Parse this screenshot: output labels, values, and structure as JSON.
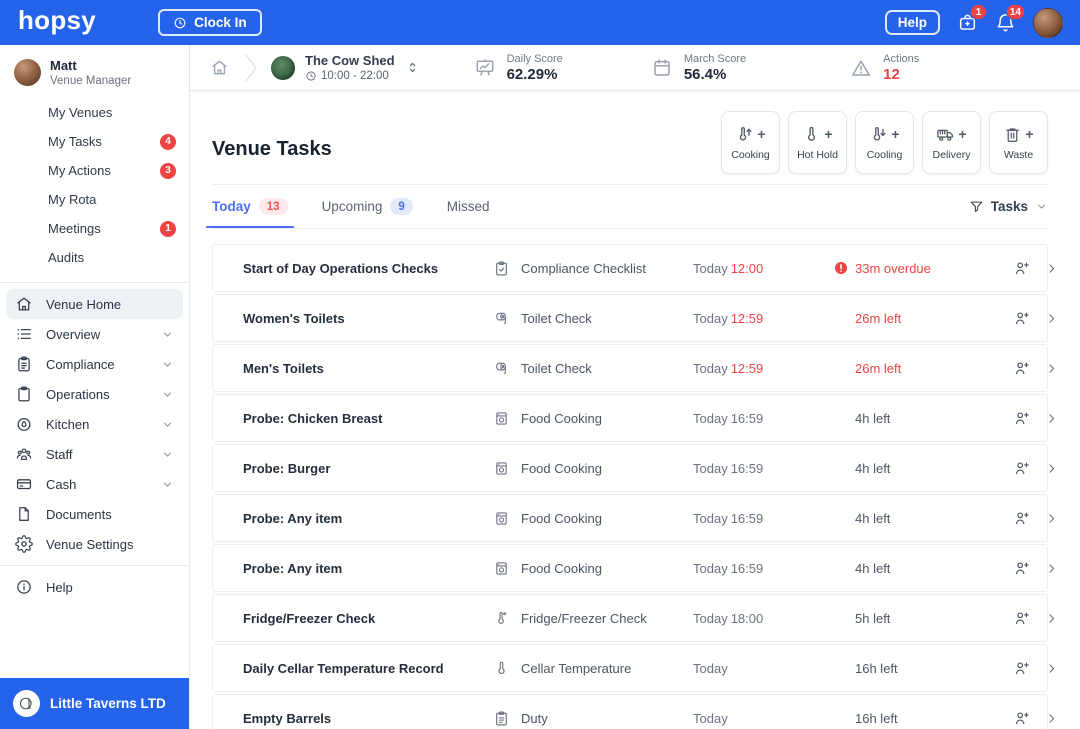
{
  "colors": {
    "brand_blue": "#2563eb",
    "accent_blue": "#4c6ef5",
    "alert_red": "#ef4444"
  },
  "topbar": {
    "logo": "hopsy",
    "clock_in_label": "Clock In",
    "help_label": "Help",
    "inbox_badge": "1",
    "notifications_badge": "14"
  },
  "header": {
    "venue_name": "The Cow Shed",
    "venue_hours": "10:00 - 22:00",
    "daily_score_label": "Daily Score",
    "daily_score_value": "62.29%",
    "month_score_label": "March Score",
    "month_score_value": "56.4%",
    "actions_label": "Actions",
    "actions_value": "12"
  },
  "sidebar": {
    "user": {
      "name": "Matt",
      "role": "Venue Manager"
    },
    "personal": [
      {
        "label": "My Venues"
      },
      {
        "label": "My Tasks",
        "badge": "4"
      },
      {
        "label": "My Actions",
        "badge": "3"
      },
      {
        "label": "My Rota"
      },
      {
        "label": "Meetings",
        "badge": "1"
      },
      {
        "label": "Audits"
      }
    ],
    "venue": [
      {
        "label": "Venue Home",
        "icon": "home",
        "active": true
      },
      {
        "label": "Overview",
        "icon": "list",
        "chevron": true
      },
      {
        "label": "Compliance",
        "icon": "clipboard-lines",
        "chevron": true
      },
      {
        "label": "Operations",
        "icon": "clipboard",
        "chevron": true
      },
      {
        "label": "Kitchen",
        "icon": "kitchen",
        "chevron": true
      },
      {
        "label": "Staff",
        "icon": "staff",
        "chevron": true
      },
      {
        "label": "Cash",
        "icon": "cash",
        "chevron": true
      },
      {
        "label": "Documents",
        "icon": "document"
      },
      {
        "label": "Venue Settings",
        "icon": "gear"
      }
    ],
    "help_label": "Help",
    "org_name": "Little Taverns LTD"
  },
  "main": {
    "title": "Venue Tasks",
    "quick_actions": [
      {
        "label": "Cooking",
        "icon": "thermo-up"
      },
      {
        "label": "Hot Hold",
        "icon": "thermo"
      },
      {
        "label": "Cooling",
        "icon": "thermo-down"
      },
      {
        "label": "Delivery",
        "icon": "truck"
      },
      {
        "label": "Waste",
        "icon": "trash"
      }
    ],
    "tabs": [
      {
        "label": "Today",
        "badge": "13",
        "badge_style": "red",
        "active": true
      },
      {
        "label": "Upcoming",
        "badge": "9",
        "badge_style": "blue"
      },
      {
        "label": "Missed"
      }
    ],
    "filter_label": "Tasks",
    "tasks": [
      {
        "name": "Start of Day Operations Checks",
        "type": "Compliance Checklist",
        "type_icon": "clipboard-check",
        "due_day": "Today",
        "due_time": "12:00",
        "time_urgent": true,
        "status": "33m overdue",
        "status_urgent": true,
        "overdue": true
      },
      {
        "name": "Women's Toilets",
        "type": "Toilet Check",
        "type_icon": "toilet-roll",
        "due_day": "Today",
        "due_time": "12:59",
        "time_urgent": true,
        "status": "26m left",
        "status_urgent": true
      },
      {
        "name": "Men's Toilets",
        "type": "Toilet Check",
        "type_icon": "toilet-roll",
        "due_day": "Today",
        "due_time": "12:59",
        "time_urgent": true,
        "status": "26m left",
        "status_urgent": true
      },
      {
        "name": "Probe: Chicken Breast",
        "type": "Food Cooking",
        "type_icon": "oven",
        "due_day": "Today",
        "due_time": "16:59",
        "status": "4h left"
      },
      {
        "name": "Probe: Burger",
        "type": "Food Cooking",
        "type_icon": "oven",
        "due_day": "Today",
        "due_time": "16:59",
        "status": "4h left"
      },
      {
        "name": "Probe: Any item",
        "type": "Food Cooking",
        "type_icon": "oven",
        "due_day": "Today",
        "due_time": "16:59",
        "status": "4h left"
      },
      {
        "name": "Probe: Any item",
        "type": "Food Cooking",
        "type_icon": "oven",
        "due_day": "Today",
        "due_time": "16:59",
        "status": "4h left"
      },
      {
        "name": "Fridge/Freezer Check",
        "type": "Fridge/Freezer Check",
        "type_icon": "thermo-deg",
        "due_day": "Today",
        "due_time": "18:00",
        "status": "5h left"
      },
      {
        "name": "Daily Cellar Temperature Record",
        "type": "Cellar Temperature",
        "type_icon": "thermo",
        "due_day": "Today",
        "due_time": "",
        "status": "16h left"
      },
      {
        "name": "Empty Barrels",
        "type": "Duty",
        "type_icon": "clipboard-lines",
        "due_day": "Today",
        "due_time": "",
        "status": "16h left"
      }
    ]
  }
}
